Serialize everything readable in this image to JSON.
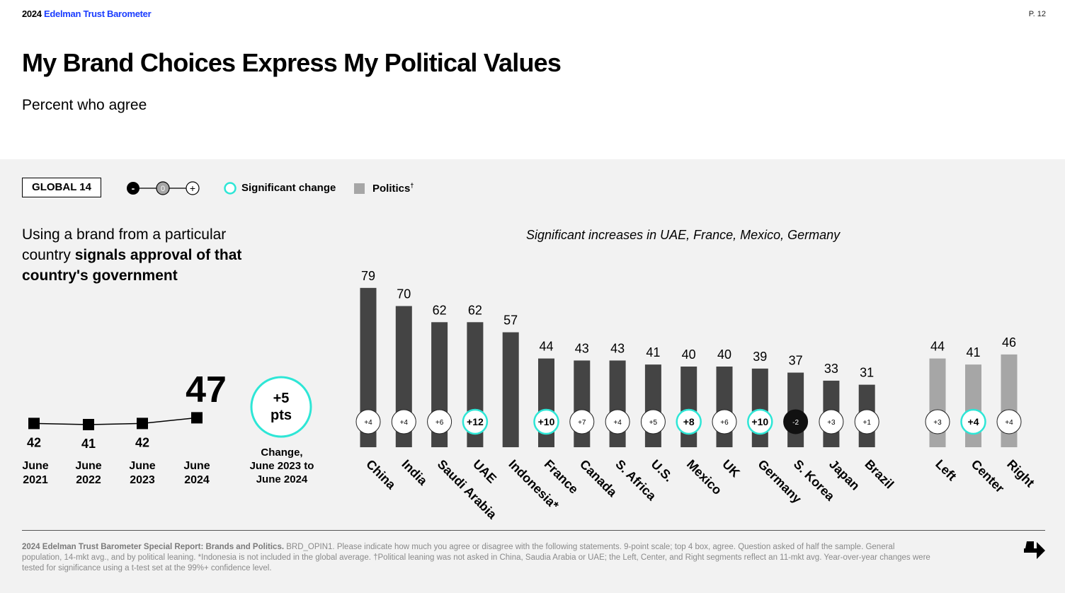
{
  "header": {
    "brand_year": "2024",
    "brand_name": "Edelman Trust Barometer",
    "page": "P. 12"
  },
  "title": "My Brand Choices Express My Political Values",
  "subtitle": "Percent who agree",
  "controls": {
    "global_label": "GLOBAL 14",
    "scale_minus": "-",
    "scale_zero": "0",
    "scale_plus": "+",
    "significant_label": "Significant change",
    "politics_label": "Politics",
    "politics_mark": "†"
  },
  "statement": {
    "plain": "Using a brand from a particular country ",
    "bold": "signals approval of that country's government"
  },
  "headline": "Significant increases in UAE, France, Mexico, Germany",
  "trend": {
    "current_value": "47",
    "change_value": "+5",
    "change_unit": "pts",
    "change_label_1": "Change,",
    "change_label_2": "June 2023 to",
    "change_label_3": "June 2024"
  },
  "footnote": {
    "bold": "2024 Edelman Trust Barometer Special Report: Brands and Politics.",
    "text": " BRD_OPIN1. Please indicate how much you agree or disagree with the following statements. 9-point scale; top 4 box, agree. Question asked of half the sample. General population, 14-mkt avg., and by political leaning. *Indonesia is not included in the global average. †Political leaning was not asked in China, Saudia Arabia or UAE; the Left, Center, and Right segments reflect an 11-mkt avg. Year-over-year changes were tested for significance using a t-test set at the 99%+ confidence level."
  },
  "colors": {
    "country_bar": "#444444",
    "politics_bar": "#a6a6a6",
    "significant": "#2ee6d6",
    "negative_badge": "#111111",
    "brand_blue": "#1a3cff"
  },
  "chart_data": [
    {
      "type": "line",
      "x": [
        "June 2021",
        "June 2022",
        "June 2023",
        "June 2024"
      ],
      "values": [
        42,
        41,
        42,
        47
      ]
    },
    {
      "type": "bar",
      "categories": [
        "China",
        "India",
        "Saudi Arabia",
        "UAE",
        "Indonesia*",
        "France",
        "Canada",
        "S. Africa",
        "U.S.",
        "Mexico",
        "UK",
        "Germany",
        "S. Korea",
        "Japan",
        "Brazil",
        "Left",
        "Center",
        "Right"
      ],
      "values": [
        79,
        70,
        62,
        62,
        57,
        44,
        43,
        43,
        41,
        40,
        40,
        39,
        37,
        33,
        31,
        44,
        41,
        46
      ],
      "changes": [
        "+4",
        "+4",
        "+6",
        "+12",
        "",
        "+10",
        "+7",
        "+4",
        "+5",
        "+8",
        "+6",
        "+10",
        "-2",
        "+3",
        "+1",
        "+3",
        "+4",
        "+4"
      ],
      "significant": [
        false,
        false,
        false,
        true,
        false,
        true,
        false,
        false,
        false,
        true,
        false,
        true,
        false,
        false,
        false,
        false,
        true,
        false
      ],
      "group": [
        "country",
        "country",
        "country",
        "country",
        "country",
        "country",
        "country",
        "country",
        "country",
        "country",
        "country",
        "country",
        "country",
        "country",
        "country",
        "politics",
        "politics",
        "politics"
      ]
    }
  ]
}
